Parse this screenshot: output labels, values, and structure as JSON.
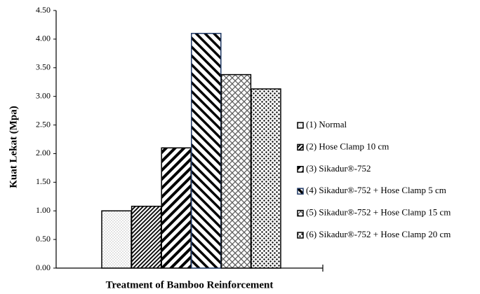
{
  "chart_data": {
    "type": "bar",
    "x_label": "Treatment of Bamboo Reinforcement",
    "y_label": "Kuat Lekat (Mpa)",
    "categories": [
      null
    ],
    "series": [
      {
        "name": "(1) Normal",
        "color": "#000000",
        "pattern": "dots-fine",
        "values": [
          1.0
        ]
      },
      {
        "name": "(2) Hose Clamp 10 cm",
        "color": "#000000",
        "pattern": "diag-dense",
        "values": [
          1.08
        ]
      },
      {
        "name": "(3) Sikadur®-752",
        "color": "#000000",
        "pattern": "diag-wide",
        "values": [
          2.1
        ]
      },
      {
        "name": "(4) Sikadur®-752 + Hose Clamp 5 cm",
        "color": "#1f3864",
        "pattern": "back-diag-wide",
        "values": [
          4.1
        ]
      },
      {
        "name": "(5) Sikadur®-752 + Hose Clamp 15 cm",
        "color": "#000000",
        "pattern": "cross-hatch",
        "values": [
          3.38
        ]
      },
      {
        "name": "(6) Sikadur®-752 + Hose Clamp 20 cm",
        "color": "#000000",
        "pattern": "dots-large",
        "values": [
          3.13
        ]
      }
    ],
    "ylim": [
      0,
      4.5
    ],
    "yticks": [
      {
        "value": 0,
        "label": "0.00"
      },
      {
        "value": 0.5,
        "label": "0.50"
      },
      {
        "value": 1,
        "label": "1.00"
      },
      {
        "value": 1.5,
        "label": "1.50"
      },
      {
        "value": 2,
        "label": "2.00"
      },
      {
        "value": 2.5,
        "label": "2.50"
      },
      {
        "value": 3,
        "label": "3.00"
      },
      {
        "value": 3.5,
        "label": "3.50"
      },
      {
        "value": 4,
        "label": "4.00"
      },
      {
        "value": 4.5,
        "label": "4.50"
      }
    ],
    "legend": "right"
  }
}
